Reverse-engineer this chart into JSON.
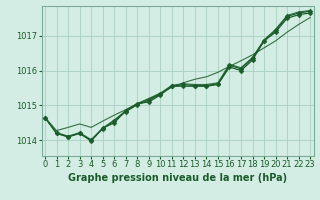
{
  "title": "Graphe pression niveau de la mer (hPa)",
  "bg_color": "#d4ede4",
  "plot_bg": "#d4ede4",
  "grid_color": "#a8cfc0",
  "line_color": "#1a5c2a",
  "xlim": [
    -0.3,
    23.3
  ],
  "ylim": [
    1013.55,
    1017.85
  ],
  "yticks": [
    1014,
    1015,
    1016,
    1017
  ],
  "xticks": [
    0,
    1,
    2,
    3,
    4,
    5,
    6,
    7,
    8,
    9,
    10,
    11,
    12,
    13,
    14,
    15,
    16,
    17,
    18,
    19,
    20,
    21,
    22,
    23
  ],
  "series_jagged": [
    1014.65,
    1014.2,
    1014.1,
    1014.2,
    1013.98,
    1014.35,
    1014.5,
    1014.85,
    1015.05,
    1015.1,
    1015.3,
    1015.55,
    1015.55,
    1015.55,
    1015.55,
    1015.6,
    1016.1,
    1016.0,
    1016.3,
    1016.85,
    1017.1,
    1017.5,
    1017.6,
    1017.65
  ],
  "series_smooth1": [
    1014.65,
    1014.22,
    1014.12,
    1014.22,
    1014.02,
    1014.35,
    1014.58,
    1014.85,
    1015.05,
    1015.18,
    1015.35,
    1015.58,
    1015.62,
    1015.6,
    1015.6,
    1015.65,
    1016.18,
    1016.08,
    1016.38,
    1016.88,
    1017.18,
    1017.58,
    1017.68,
    1017.72
  ],
  "series_smooth2": [
    1014.65,
    1014.2,
    1014.1,
    1014.2,
    1014.0,
    1014.33,
    1014.56,
    1014.82,
    1015.02,
    1015.15,
    1015.32,
    1015.55,
    1015.6,
    1015.57,
    1015.57,
    1015.62,
    1016.15,
    1016.05,
    1016.35,
    1016.85,
    1017.15,
    1017.55,
    1017.65,
    1017.7
  ],
  "series_straight": [
    1014.65,
    1014.28,
    1014.37,
    1014.47,
    1014.37,
    1014.55,
    1014.72,
    1014.88,
    1015.05,
    1015.2,
    1015.35,
    1015.52,
    1015.65,
    1015.75,
    1015.82,
    1015.95,
    1016.12,
    1016.28,
    1016.45,
    1016.65,
    1016.85,
    1017.1,
    1017.32,
    1017.52
  ],
  "markersize": 2.5,
  "linewidth": 0.9,
  "tick_fontsize": 6,
  "label_fontsize": 7
}
